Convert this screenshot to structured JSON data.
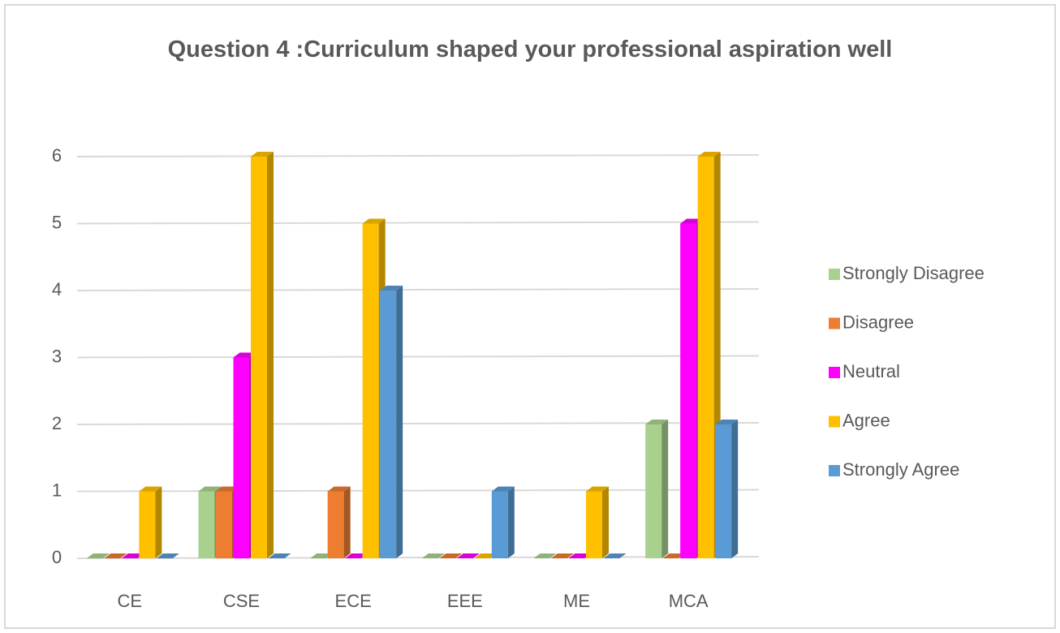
{
  "chart_data": {
    "type": "bar3d",
    "title": "Question 4 :Curriculum shaped your professional aspiration well",
    "categories": [
      "CE",
      "CSE",
      "ECE",
      "EEE",
      "ME",
      "MCA"
    ],
    "series": [
      {
        "name": "Strongly Disagree",
        "color": "#a9d18e",
        "values": [
          0,
          1,
          0,
          0,
          0,
          2
        ]
      },
      {
        "name": "Disagree",
        "color": "#ed7d31",
        "values": [
          0,
          1,
          1,
          0,
          0,
          0
        ]
      },
      {
        "name": "Neutral",
        "color": "#ff00ff",
        "values": [
          0,
          3,
          0,
          0,
          0,
          5
        ]
      },
      {
        "name": "Agree",
        "color": "#ffc000",
        "values": [
          1,
          6,
          5,
          0,
          1,
          6
        ]
      },
      {
        "name": "Strongly Agree",
        "color": "#5b9bd5",
        "values": [
          0,
          0,
          4,
          1,
          0,
          2
        ]
      }
    ],
    "ylim": [
      0,
      6
    ],
    "yticks": [
      0,
      1,
      2,
      3,
      4,
      5,
      6
    ],
    "grid": true,
    "legend": "right"
  }
}
